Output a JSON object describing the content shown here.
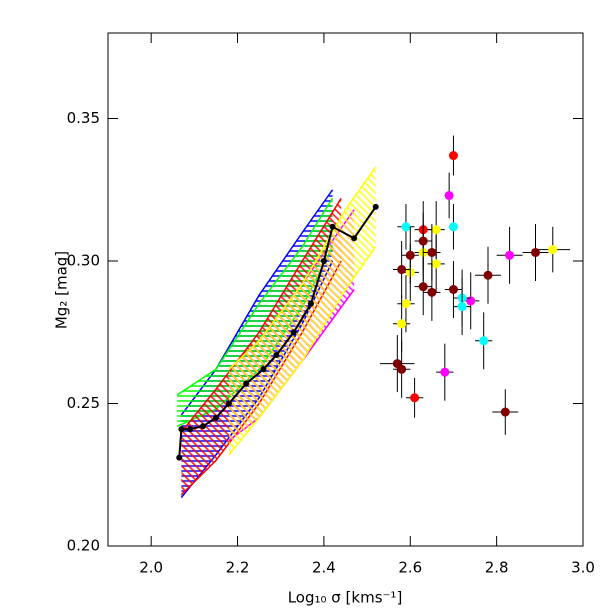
{
  "chart_data": {
    "type": "scatter",
    "x_label": "Log₁₀ σ [kms⁻¹]",
    "y_label": "Mg₂ [mag]",
    "xlim": [
      1.9,
      3.0
    ],
    "ylim": [
      0.2,
      0.38
    ],
    "xticks": [
      {
        "value": 2.0,
        "label": "2.0"
      },
      2.2,
      2.4,
      2.6,
      2.8,
      {
        "value": 3.0,
        "label": "3.0"
      }
    ],
    "yticks": [
      {
        "value": 0.2,
        "label": "0.20"
      },
      0.25,
      {
        "value": 0.3,
        "label": "0.30"
      },
      0.35
    ],
    "bands": [
      {
        "color": "#0000ff",
        "hatch": "horizontal",
        "x": [
          2.07,
          2.15,
          2.25,
          2.35,
          2.42
        ],
        "lower": [
          0.217,
          0.232,
          0.252,
          0.278,
          0.3
        ],
        "upper": [
          0.246,
          0.262,
          0.288,
          0.31,
          0.325
        ]
      },
      {
        "color": "#00ff00",
        "hatch": "horizontal",
        "x": [
          2.06,
          2.15,
          2.25,
          2.35,
          2.42
        ],
        "lower": [
          0.242,
          0.248,
          0.262,
          0.284,
          0.305
        ],
        "upper": [
          0.253,
          0.262,
          0.285,
          0.305,
          0.322
        ]
      },
      {
        "color": "#ff0000",
        "hatch": "diagonal",
        "x": [
          2.07,
          2.15,
          2.25,
          2.35,
          2.44
        ],
        "lower": [
          0.218,
          0.23,
          0.25,
          0.275,
          0.3
        ],
        "upper": [
          0.24,
          0.255,
          0.275,
          0.3,
          0.322
        ]
      },
      {
        "color": "#ff00ff",
        "hatch": "diagonal",
        "x": [
          2.18,
          2.25,
          2.35,
          2.47
        ],
        "lower": [
          0.237,
          0.245,
          0.265,
          0.29
        ],
        "upper": [
          0.262,
          0.272,
          0.292,
          0.318
        ]
      },
      {
        "color": "#ffff00",
        "hatch": "diagonal",
        "x": [
          2.18,
          2.25,
          2.35,
          2.45,
          2.52
        ],
        "lower": [
          0.232,
          0.245,
          0.265,
          0.29,
          0.305
        ],
        "upper": [
          0.262,
          0.272,
          0.292,
          0.318,
          0.333
        ]
      }
    ],
    "line": {
      "color": "#000000",
      "x": [
        2.065,
        2.07,
        2.09,
        2.12,
        2.15,
        2.18,
        2.22,
        2.26,
        2.29,
        2.33,
        2.37,
        2.4,
        2.42,
        2.47,
        2.52
      ],
      "values": [
        0.231,
        0.241,
        0.241,
        0.242,
        0.245,
        0.25,
        0.257,
        0.262,
        0.267,
        0.275,
        0.285,
        0.3,
        0.312,
        0.308,
        0.319
      ]
    },
    "series": [
      {
        "color": "#ff0000",
        "x": [
          2.7,
          2.63,
          2.61
        ],
        "values": [
          0.337,
          0.311,
          0.252
        ],
        "xerr": [
          0.01,
          0.02,
          0.02
        ],
        "yerr": [
          0.007,
          0.01,
          0.007
        ]
      },
      {
        "color": "#ff00ff",
        "x": [
          2.69,
          2.83,
          2.74,
          2.68
        ],
        "values": [
          0.323,
          0.302,
          0.286,
          0.261
        ],
        "xerr": [
          0.01,
          0.03,
          0.02,
          0.02
        ],
        "yerr": [
          0.008,
          0.01,
          0.01,
          0.01
        ]
      },
      {
        "color": "#00ffff",
        "x": [
          2.59,
          2.7,
          2.72,
          2.72,
          2.77
        ],
        "values": [
          0.312,
          0.312,
          0.287,
          0.284,
          0.272
        ],
        "xerr": [
          0.02,
          0.01,
          0.02,
          0.02,
          0.02
        ],
        "yerr": [
          0.008,
          0.008,
          0.01,
          0.01,
          0.01
        ]
      },
      {
        "color": "#ffff00",
        "x": [
          2.66,
          2.63,
          2.66,
          2.6,
          2.93,
          2.59,
          2.58
        ],
        "values": [
          0.311,
          0.303,
          0.299,
          0.296,
          0.304,
          0.285,
          0.278
        ],
        "xerr": [
          0.02,
          0.02,
          0.02,
          0.02,
          0.04,
          0.02,
          0.02
        ],
        "yerr": [
          0.01,
          0.01,
          0.01,
          0.01,
          0.008,
          0.01,
          0.01
        ]
      },
      {
        "color": "#800000",
        "x": [
          2.63,
          2.65,
          2.6,
          2.58,
          2.89,
          2.78,
          2.63,
          2.65,
          2.7,
          2.57,
          2.58,
          2.82
        ],
        "values": [
          0.307,
          0.303,
          0.302,
          0.297,
          0.303,
          0.295,
          0.291,
          0.289,
          0.29,
          0.264,
          0.262,
          0.247
        ],
        "xerr": [
          0.02,
          0.02,
          0.02,
          0.02,
          0.03,
          0.03,
          0.02,
          0.02,
          0.02,
          0.04,
          0.02,
          0.03
        ],
        "yerr": [
          0.01,
          0.01,
          0.01,
          0.01,
          0.01,
          0.01,
          0.01,
          0.01,
          0.01,
          0.01,
          0.01,
          0.008
        ]
      }
    ]
  }
}
